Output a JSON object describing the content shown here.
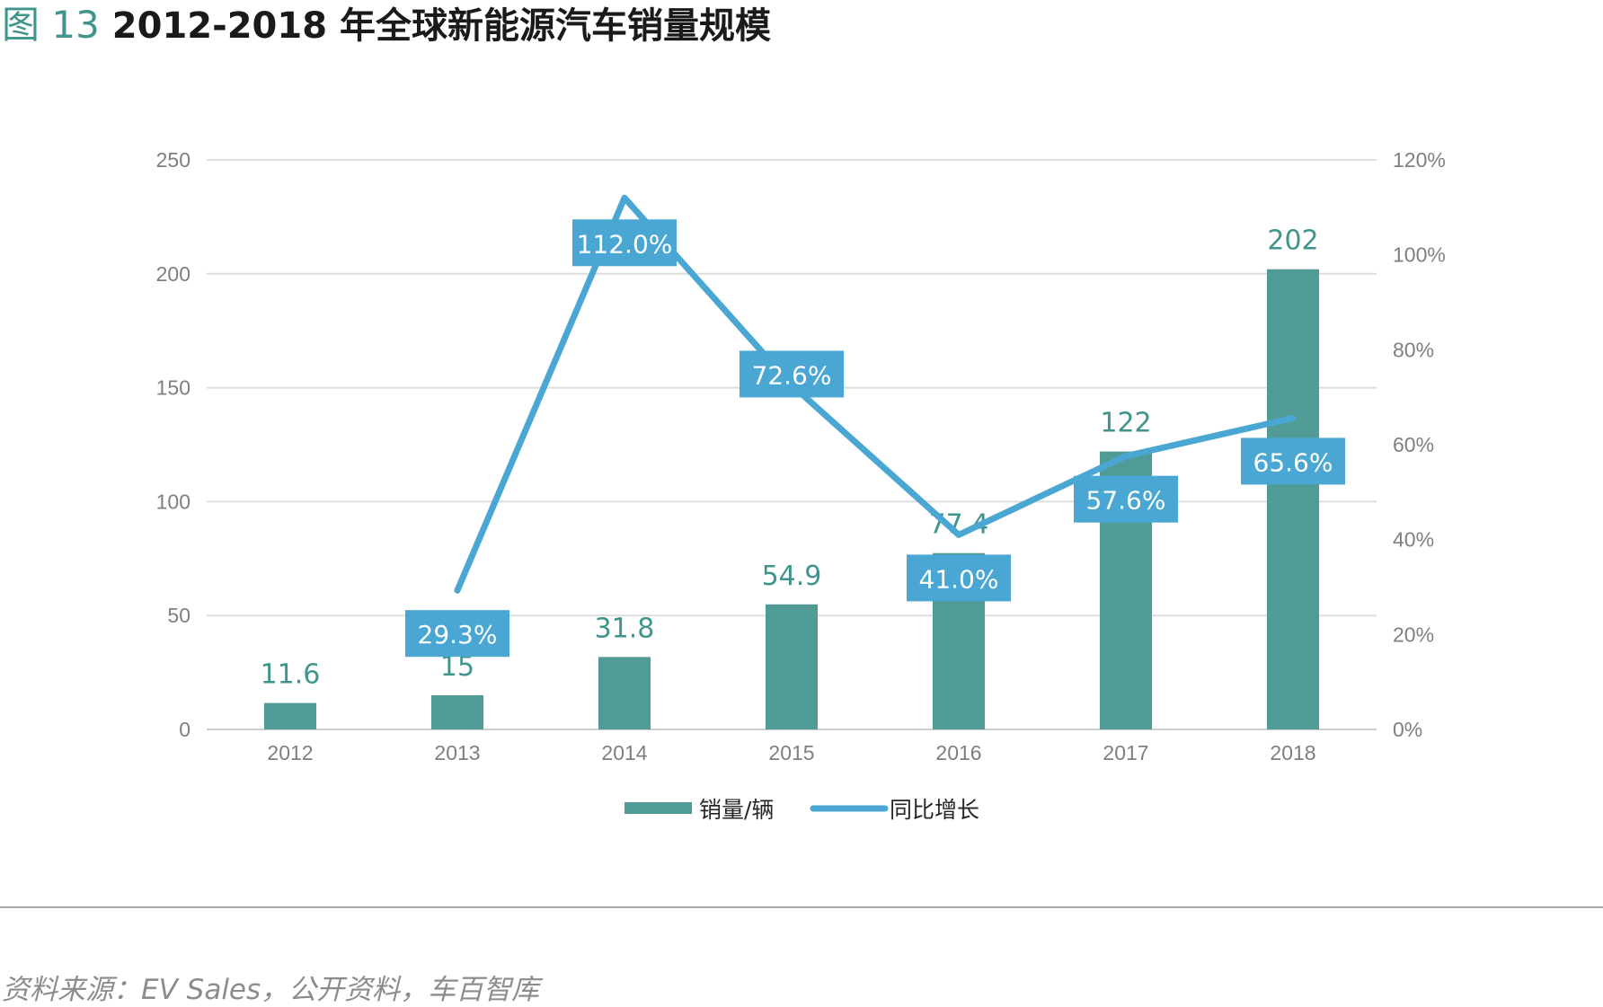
{
  "figure": {
    "label": "图 13",
    "title": "2012-2018 年全球新能源汽车销量规模",
    "source": "资料来源：EV Sales，公开资料，车百智库"
  },
  "colors": {
    "bar": "#509b95",
    "line": "#4aa7d3",
    "label_box": "#4aa7d3",
    "bar_label": "#3f958c",
    "grid": "#dedede",
    "axis_text": "#7f7f7f",
    "prefix": "#3f958c"
  },
  "chart_data": {
    "type": "bar",
    "title": "",
    "xlabel": "",
    "ylabel": "",
    "categories": [
      "2012",
      "2013",
      "2014",
      "2015",
      "2016",
      "2017",
      "2018"
    ],
    "series": [
      {
        "name": "销量/辆",
        "type": "bar",
        "axis": "left",
        "values": [
          11.6,
          15,
          31.8,
          54.9,
          77.4,
          122,
          202
        ],
        "labels": [
          "11.6",
          "15",
          "31.8",
          "54.9",
          "77.4",
          "122",
          "202"
        ]
      },
      {
        "name": "同比增长",
        "type": "line",
        "axis": "right",
        "values": [
          null,
          29.3,
          112.0,
          72.6,
          41.0,
          57.6,
          65.6
        ],
        "labels": [
          "",
          "29.3%",
          "112.0%",
          "72.6%",
          "41.0%",
          "57.6%",
          "65.6%"
        ]
      }
    ],
    "ylim": [
      0,
      250
    ],
    "y_ticks": [
      0,
      50,
      100,
      150,
      200,
      250
    ],
    "y_tick_labels": [
      "0",
      "50",
      "100",
      "150",
      "200",
      "250"
    ],
    "y2lim": [
      0,
      120
    ],
    "y2_ticks": [
      0,
      20,
      40,
      60,
      80,
      100,
      120
    ],
    "y2_tick_labels": [
      "0%",
      "20%",
      "40%",
      "60%",
      "80%",
      "100%",
      "120%"
    ],
    "grid": true,
    "legend": "bottom-center"
  }
}
